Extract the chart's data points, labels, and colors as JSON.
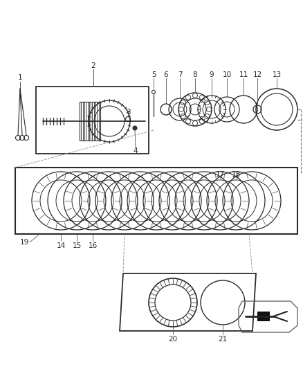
{
  "bg_color": "#ffffff",
  "lc": "#2a2a2a",
  "lc2": "#555555",
  "fig_w": 4.38,
  "fig_h": 5.33,
  "dpi": 100
}
